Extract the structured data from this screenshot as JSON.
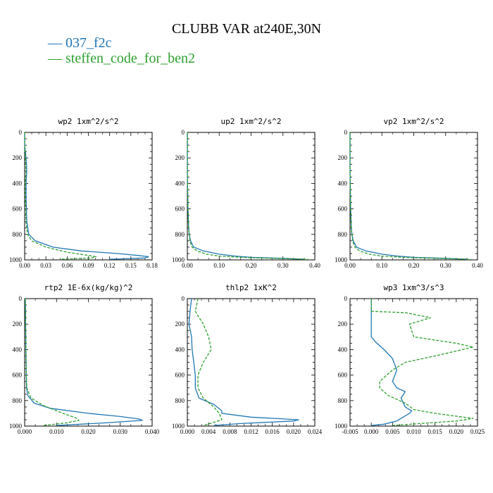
{
  "title": "CLUBB VAR at240E,30N",
  "legend": [
    {
      "label": "037_f2c",
      "color": "#1f77b4"
    },
    {
      "label": "steffen_code_for_ben2",
      "color": "#2ca02c"
    }
  ],
  "chart_data": [
    {
      "type": "line",
      "title": "wp2   1xm^2/s^2",
      "xlim": [
        0,
        0.18
      ],
      "xticks": [
        "0.00",
        "0.03",
        "0.06",
        "0.09",
        "0.12",
        "0.15",
        "0.18"
      ],
      "xtick_values": [
        0,
        0.03,
        0.06,
        0.09,
        0.12,
        0.15,
        0.18
      ],
      "ylim": [
        1000,
        0
      ],
      "yticks": [
        "0",
        "200",
        "400",
        "600",
        "800",
        "1000"
      ],
      "series": [
        {
          "name": "037_f2c",
          "x": [
            0,
            0,
            0.002,
            0.003,
            0.002,
            0.002,
            0.003,
            0.006,
            0.015,
            0.04,
            0.08,
            0.13,
            0.16,
            0.175,
            0.17,
            0.12
          ],
          "y": [
            0,
            100,
            200,
            300,
            400,
            500,
            700,
            800,
            850,
            900,
            930,
            950,
            965,
            975,
            985,
            995
          ]
        },
        {
          "name": "steffen_code_for_ben2",
          "x": [
            0,
            0,
            0.001,
            0.002,
            0.001,
            0.001,
            0.002,
            0.004,
            0.01,
            0.03,
            0.06,
            0.09,
            0.1,
            0.095,
            0.05
          ],
          "y": [
            0,
            100,
            200,
            300,
            400,
            500,
            700,
            800,
            850,
            900,
            940,
            965,
            975,
            985,
            995
          ]
        }
      ]
    },
    {
      "type": "line",
      "title": "up2   1xm^2/s^2",
      "xlim": [
        0,
        0.4
      ],
      "xticks": [
        "0.00",
        "0.10",
        "0.20",
        "0.30",
        "0.40"
      ],
      "xtick_values": [
        0,
        0.1,
        0.2,
        0.3,
        0.4
      ],
      "ylim": [
        1000,
        0
      ],
      "yticks": [
        "0",
        "200",
        "400",
        "600",
        "800",
        "1000"
      ],
      "series": [
        {
          "name": "037_f2c",
          "x": [
            0,
            0,
            0.002,
            0.004,
            0.006,
            0.01,
            0.02,
            0.05,
            0.1,
            0.15,
            0.2,
            0.3,
            0.37
          ],
          "y": [
            0,
            300,
            600,
            750,
            800,
            850,
            900,
            930,
            955,
            970,
            980,
            988,
            995
          ]
        },
        {
          "name": "steffen_code_for_ben2",
          "x": [
            0,
            0,
            0.002,
            0.004,
            0.008,
            0.015,
            0.03,
            0.06,
            0.1,
            0.18,
            0.3,
            0.38
          ],
          "y": [
            0,
            300,
            600,
            750,
            850,
            900,
            930,
            955,
            970,
            982,
            990,
            996
          ]
        }
      ]
    },
    {
      "type": "line",
      "title": "vp2   1xm^2/s^2",
      "xlim": [
        0,
        0.4
      ],
      "xticks": [
        "0.00",
        "0.10",
        "0.20",
        "0.30",
        "0.40"
      ],
      "xtick_values": [
        0,
        0.1,
        0.2,
        0.3,
        0.4
      ],
      "ylim": [
        1000,
        0
      ],
      "yticks": [
        "0",
        "200",
        "400",
        "600",
        "800",
        "1000"
      ],
      "series": [
        {
          "name": "037_f2c",
          "x": [
            0,
            0,
            0.002,
            0.004,
            0.006,
            0.01,
            0.02,
            0.05,
            0.1,
            0.15,
            0.2,
            0.3,
            0.37
          ],
          "y": [
            0,
            300,
            600,
            750,
            800,
            850,
            900,
            930,
            955,
            970,
            980,
            988,
            995
          ]
        },
        {
          "name": "steffen_code_for_ben2",
          "x": [
            0,
            0,
            0.002,
            0.004,
            0.008,
            0.015,
            0.03,
            0.06,
            0.1,
            0.18,
            0.3,
            0.38
          ],
          "y": [
            0,
            300,
            600,
            750,
            850,
            900,
            930,
            955,
            970,
            982,
            990,
            996
          ]
        }
      ]
    },
    {
      "type": "line",
      "title": "rtp2   1E-6x(kg/kg)^2",
      "xlim": [
        0,
        0.04
      ],
      "xticks": [
        "0.000",
        "0.010",
        "0.020",
        "0.030",
        "0.040"
      ],
      "xtick_values": [
        0,
        0.01,
        0.02,
        0.03,
        0.04
      ],
      "ylim": [
        1000,
        0
      ],
      "yticks": [
        "0",
        "200",
        "400",
        "600",
        "800",
        "1000"
      ],
      "series": [
        {
          "name": "037_f2c",
          "x": [
            0.0002,
            0.0003,
            0.0004,
            0.0005,
            0.0006,
            0.001,
            0.003,
            0.008,
            0.02,
            0.03,
            0.036,
            0.037,
            0.025,
            0.01
          ],
          "y": [
            0,
            200,
            400,
            600,
            700,
            760,
            820,
            860,
            900,
            925,
            945,
            955,
            975,
            995
          ]
        },
        {
          "name": "steffen_code_for_ben2",
          "x": [
            0.0002,
            0.0003,
            0.0004,
            0.0005,
            0.0007,
            0.002,
            0.006,
            0.012,
            0.016,
            0.017,
            0.013,
            0.006
          ],
          "y": [
            0,
            200,
            400,
            600,
            700,
            780,
            840,
            900,
            935,
            955,
            975,
            995
          ]
        }
      ]
    },
    {
      "type": "line",
      "title": "thlp2   1xK^2",
      "xlim": [
        0,
        0.024
      ],
      "xticks": [
        "0.000",
        "0.004",
        "0.008",
        "0.012",
        "0.016",
        "0.020",
        "0.024"
      ],
      "xtick_values": [
        0,
        0.004,
        0.008,
        0.012,
        0.016,
        0.02,
        0.024
      ],
      "ylim": [
        1000,
        0
      ],
      "yticks": [
        "0",
        "200",
        "400",
        "600",
        "800",
        "1000"
      ],
      "series": [
        {
          "name": "037_f2c",
          "x": [
            0.0008,
            0.0005,
            0.0003,
            0.0008,
            0.0009,
            0.0012,
            0.0015,
            0.0015,
            0.0022,
            0.005,
            0.0065,
            0.0065,
            0.012,
            0.021,
            0.02,
            0.01,
            0.005
          ],
          "y": [
            0,
            100,
            200,
            300,
            400,
            500,
            600,
            700,
            780,
            830,
            880,
            900,
            930,
            950,
            960,
            980,
            995
          ]
        },
        {
          "name": "steffen_code_for_ben2",
          "x": [
            0.002,
            0.0015,
            0.003,
            0.004,
            0.0045,
            0.003,
            0.002,
            0.002,
            0.003,
            0.005,
            0.006,
            0.0065,
            0.005,
            0.003
          ],
          "y": [
            0,
            100,
            200,
            300,
            400,
            500,
            600,
            700,
            780,
            850,
            900,
            950,
            970,
            995
          ]
        }
      ]
    },
    {
      "type": "line",
      "title": "wp3   1xm^3/s^3",
      "xlim": [
        -0.005,
        0.025
      ],
      "xticks": [
        "-0.005",
        "0.000",
        "0.005",
        "0.010",
        "0.015",
        "0.020",
        "0.025"
      ],
      "xtick_values": [
        -0.005,
        0,
        0.005,
        0.01,
        0.015,
        0.02,
        0.025
      ],
      "ylim": [
        1000,
        0
      ],
      "yticks": [
        "0",
        "200",
        "400",
        "600",
        "800",
        "1000"
      ],
      "series": [
        {
          "name": "037_f2c",
          "x": [
            0,
            0,
            0,
            0.001,
            0.003,
            0.005,
            0.006,
            0.005,
            0.006,
            0.008,
            0.007,
            0.008,
            0.0095,
            0.009,
            0.007,
            0.006,
            0.003,
            0
          ],
          "y": [
            0,
            100,
            300,
            340,
            400,
            470,
            560,
            650,
            700,
            730,
            780,
            850,
            880,
            900,
            940,
            960,
            985,
            995
          ]
        },
        {
          "name": "steffen_code_for_ben2",
          "x": [
            0,
            0,
            0.008,
            0.014,
            0.009,
            0.01,
            0.02,
            0.024,
            0.015,
            0.008,
            0.005,
            0.002,
            0.002,
            0.004,
            0.008,
            0.01,
            0.015,
            0.024,
            0.02,
            0.005
          ],
          "y": [
            0,
            100,
            110,
            150,
            200,
            300,
            350,
            380,
            450,
            500,
            560,
            650,
            700,
            760,
            820,
            870,
            900,
            940,
            960,
            995
          ]
        }
      ]
    }
  ]
}
